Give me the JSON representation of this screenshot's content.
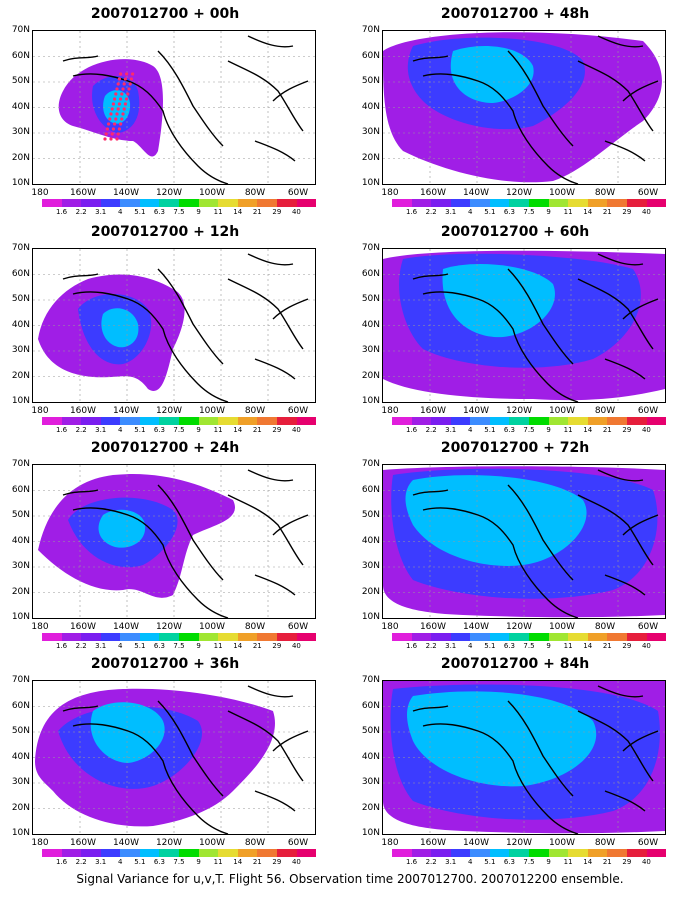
{
  "footer": "Signal Variance for u,v,T. Flight 56. Observation time 2007012700. 2007012200 ensemble.",
  "lat_labels": [
    "70N",
    "60N",
    "50N",
    "40N",
    "30N",
    "20N",
    "10N"
  ],
  "lon_labels": [
    "180",
    "160W",
    "140W",
    "120W",
    "100W",
    "80W",
    "60W"
  ],
  "colorbar": {
    "labels": [
      "1.6",
      "2.2",
      "3.1",
      "4",
      "5.1",
      "6.3",
      "7.5",
      "9",
      "11",
      "14",
      "21",
      "29",
      "40"
    ],
    "colors": [
      "#e01edc",
      "#a01ee6",
      "#7a1ef0",
      "#3c3cff",
      "#3c8cff",
      "#00beff",
      "#00d2a0",
      "#00dc00",
      "#a0e632",
      "#e6dc32",
      "#f0a028",
      "#f07832",
      "#e61e3c",
      "#e6006e"
    ]
  },
  "panels": [
    {
      "title": "2007012700 + 00h",
      "lead_hours": 0
    },
    {
      "title": "2007012700 + 48h",
      "lead_hours": 48
    },
    {
      "title": "2007012700 + 12h",
      "lead_hours": 12
    },
    {
      "title": "2007012700 + 60h",
      "lead_hours": 60
    },
    {
      "title": "2007012700 + 24h",
      "lead_hours": 24
    },
    {
      "title": "2007012700 + 72h",
      "lead_hours": 72
    },
    {
      "title": "2007012700 + 36h",
      "lead_hours": 36
    },
    {
      "title": "2007012700 + 84h",
      "lead_hours": 84
    }
  ]
}
